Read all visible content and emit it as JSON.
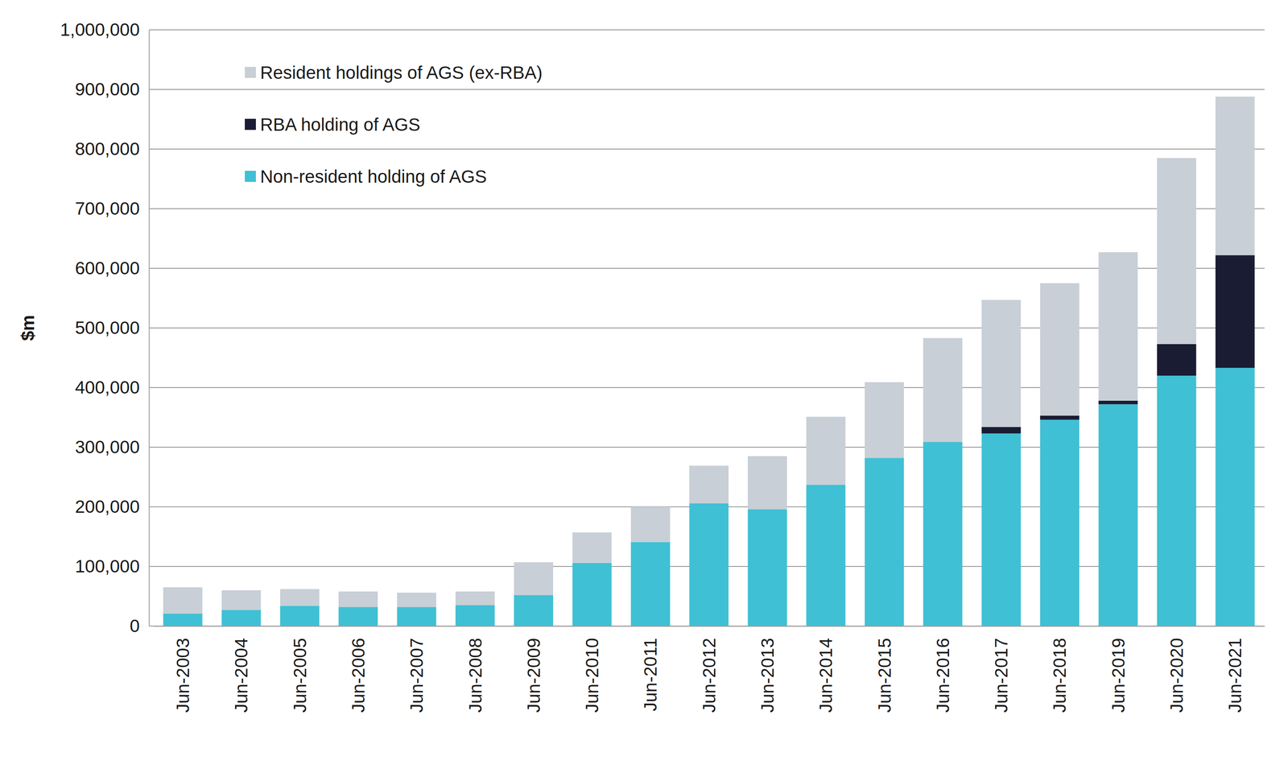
{
  "chart_data": {
    "type": "bar",
    "stacked": true,
    "grid": true,
    "legend": "upper-left",
    "y_label": "$m",
    "categories": [
      "Jun-2003",
      "Jun-2004",
      "Jun-2005",
      "Jun-2006",
      "Jun-2007",
      "Jun-2008",
      "Jun-2009",
      "Jun-2010",
      "Jun-2011",
      "Jun-2012",
      "Jun-2013",
      "Jun-2014",
      "Jun-2015",
      "Jun-2016",
      "Jun-2017",
      "Jun-2018",
      "Jun-2019",
      "Jun-2020",
      "Jun-2021"
    ],
    "series": [
      {
        "name": "Non-resident holding of AGS",
        "color": "#40c0d4",
        "values": [
          21000,
          27000,
          34000,
          32000,
          32000,
          35000,
          52000,
          106000,
          141000,
          206000,
          196000,
          237000,
          282000,
          309000,
          323000,
          346000,
          372000,
          420000,
          433000
        ]
      },
      {
        "name": "RBA holding of AGS",
        "color": "#1a1c33",
        "values": [
          0,
          0,
          0,
          0,
          0,
          0,
          0,
          0,
          0,
          0,
          0,
          0,
          0,
          0,
          11000,
          7000,
          6000,
          53000,
          189000
        ]
      },
      {
        "name": "Resident holdings of AGS (ex-RBA)",
        "color": "#c8cfd6",
        "values": [
          44000,
          33000,
          28000,
          26000,
          24000,
          23000,
          55000,
          51000,
          59000,
          63000,
          89000,
          114000,
          127000,
          174000,
          213000,
          222000,
          249000,
          312000,
          266000
        ]
      }
    ],
    "ylim": [
      0,
      1000000
    ],
    "yticks": [
      0,
      {
        "value": 100000,
        "label": "100,000"
      },
      {
        "value": 200000,
        "label": "200,000"
      },
      {
        "value": 300000,
        "label": "300,000"
      },
      {
        "value": 400000,
        "label": "400,000"
      },
      {
        "value": 500000,
        "label": "500,000"
      },
      {
        "value": 600000,
        "label": "600,000"
      },
      {
        "value": 700000,
        "label": "700,000"
      },
      {
        "value": 800000,
        "label": "800,000"
      },
      {
        "value": 900000,
        "label": "900,000"
      },
      {
        "value": 1000000,
        "label": "1,000,000"
      }
    ]
  }
}
